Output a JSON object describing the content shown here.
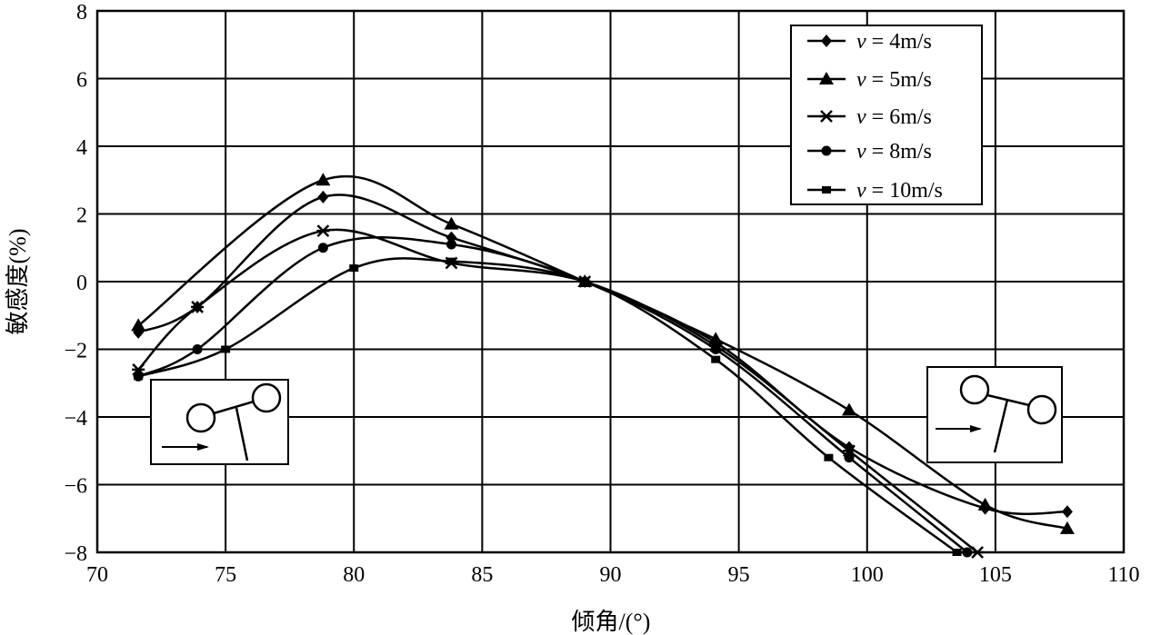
{
  "chart_data": {
    "type": "line",
    "title": "",
    "xlabel": "倾角/(°)",
    "ylabel": "敏感度(%)",
    "xlim": [
      70,
      110
    ],
    "ylim": [
      -8,
      8
    ],
    "xticks": [
      70,
      75,
      80,
      85,
      90,
      95,
      100,
      105,
      110
    ],
    "yticks": [
      8,
      6,
      4,
      2,
      0,
      -2,
      -4,
      -6,
      -8
    ],
    "ytick_labels": [
      "8",
      "6",
      "4",
      "2",
      "0",
      "−2",
      "−4",
      "−6",
      "−8"
    ],
    "grid": true,
    "legend_position": "top-right",
    "series": [
      {
        "name": "v = 4m/s",
        "label_v": "v",
        "label_rest": " = 4m/s",
        "marker": "diamond",
        "x": [
          71.6,
          73.9,
          78.8,
          83.8,
          89,
          94.1,
          99.3,
          104.6,
          107.8
        ],
        "y": [
          -1.5,
          -0.75,
          2.5,
          1.3,
          0,
          -1.8,
          -4.9,
          -6.7,
          -6.8
        ]
      },
      {
        "name": "v = 5m/s",
        "label_v": "v",
        "label_rest": " = 5m/s",
        "marker": "triangle",
        "x": [
          71.6,
          78.8,
          83.8,
          89,
          94.1,
          99.3,
          104.6,
          107.8
        ],
        "y": [
          -1.3,
          3.0,
          1.7,
          0,
          -1.7,
          -3.8,
          -6.6,
          -7.3
        ]
      },
      {
        "name": "v = 6m/s",
        "label_v": "v",
        "label_rest": " = 6m/s",
        "marker": "star",
        "x": [
          71.6,
          73.9,
          78.8,
          83.8,
          89,
          94.1,
          99.3,
          104.3
        ],
        "y": [
          -2.6,
          -0.75,
          1.5,
          0.55,
          0,
          -1.9,
          -5.0,
          -8.0
        ]
      },
      {
        "name": "v = 8m/s",
        "label_v": "v",
        "label_rest": " = 8m/s",
        "marker": "dot",
        "x": [
          71.6,
          73.9,
          78.8,
          83.8,
          89,
          94.1,
          99.3,
          103.9
        ],
        "y": [
          -2.8,
          -2.0,
          1.0,
          1.1,
          0,
          -2.0,
          -5.2,
          -8.0
        ]
      },
      {
        "name": "v = 10m/s",
        "label_v": "v",
        "label_rest": " = 10m/s",
        "marker": "dash",
        "x": [
          71.6,
          75.0,
          80.0,
          83.8,
          89,
          94.1,
          98.5,
          103.5
        ],
        "y": [
          -2.8,
          -2.0,
          0.4,
          0.6,
          0,
          -2.3,
          -5.2,
          -8.0
        ]
      }
    ]
  }
}
